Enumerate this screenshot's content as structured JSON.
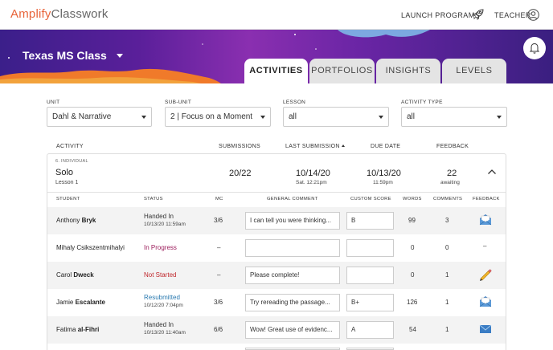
{
  "header": {
    "logo_part1": "Amplify",
    "logo_part2": "Classwork",
    "launch_programs": "LAUNCH PROGRAMS",
    "teacher": "TEACHER",
    "icons": [
      "rocket-icon",
      "user-icon",
      "bell-icon"
    ]
  },
  "banner": {
    "class_name": "Texas MS Class"
  },
  "tabs": [
    {
      "label": "ACTIVITIES",
      "active": true
    },
    {
      "label": "PORTFOLIOS",
      "active": false
    },
    {
      "label": "INSIGHTS",
      "active": false
    },
    {
      "label": "LEVELS",
      "active": false
    }
  ],
  "filters": {
    "unit": {
      "label": "UNIT",
      "value": "Dahl & Narrative"
    },
    "subunit": {
      "label": "SUB-UNIT",
      "value": "2 | Focus on a Moment"
    },
    "lesson": {
      "label": "LESSON",
      "value": "all"
    },
    "activity_type": {
      "label": "ACTIVITY TYPE",
      "value": "all"
    }
  },
  "columns": {
    "activity": "ACTIVITY",
    "submissions": "SUBMISSIONS",
    "last_submission": "LAST SUBMISSION",
    "due_date": "DUE DATE",
    "feedback": "FEEDBACK"
  },
  "activity": {
    "type": "6. INDIVIDUAL",
    "name": "Solo",
    "lesson": "Lesson 1",
    "submissions": "20/22",
    "last_submission_date": "10/14/20",
    "last_submission_time": "Sat. 12:21pm",
    "due_date": "10/13/20",
    "due_time": "11:59pm",
    "feedback_count": "22",
    "feedback_note": "awaiting"
  },
  "student_columns": {
    "student": "STUDENT",
    "status": "STATUS",
    "mc": "MC",
    "general_comment": "GENERAL COMMENT",
    "custom_score": "CUSTOM SCORE",
    "words": "WORDS",
    "comments": "COMMENTS",
    "feedback": "FEEDBACK"
  },
  "students": [
    {
      "first": "Anthony",
      "last": "Bryk",
      "status": "Handed In",
      "status_time": "10/13/20 11:59am",
      "status_color": "#333333",
      "mc": "3/6",
      "comment": "I can tell you were thinking...",
      "score": "B",
      "words": "99",
      "comments": "3",
      "feedback_icon": "envelope-open-icon"
    },
    {
      "first": "Mihaly",
      "last": "Csikszentmihalyi",
      "status": "In Progress",
      "status_time": "",
      "status_color": "#9b1b5a",
      "mc": "–",
      "comment": "",
      "score": "",
      "words": "0",
      "comments": "0",
      "feedback_icon": "dash"
    },
    {
      "first": "Carol",
      "last": "Dweck",
      "status": "Not Started",
      "status_time": "",
      "status_color": "#c0282d",
      "mc": "–",
      "comment": "Please complete!",
      "score": "",
      "words": "0",
      "comments": "1",
      "feedback_icon": "pencil-icon"
    },
    {
      "first": "Jamie",
      "last": "Escalante",
      "status": "Resubmitted",
      "status_time": "10/12/20 7:04pm",
      "status_color": "#2a7ab0",
      "mc": "3/6",
      "comment": "Try rereading the passage...",
      "score": "B+",
      "words": "126",
      "comments": "1",
      "feedback_icon": "envelope-open-icon"
    },
    {
      "first": "Fatima",
      "last": "al-Fihri",
      "status": "Handed In",
      "status_time": "10/13/20 11:40am",
      "status_color": "#333333",
      "mc": "6/6",
      "comment": "Wow! Great use of evidenc...",
      "score": "A",
      "words": "54",
      "comments": "1",
      "feedback_icon": "envelope-icon"
    }
  ]
}
